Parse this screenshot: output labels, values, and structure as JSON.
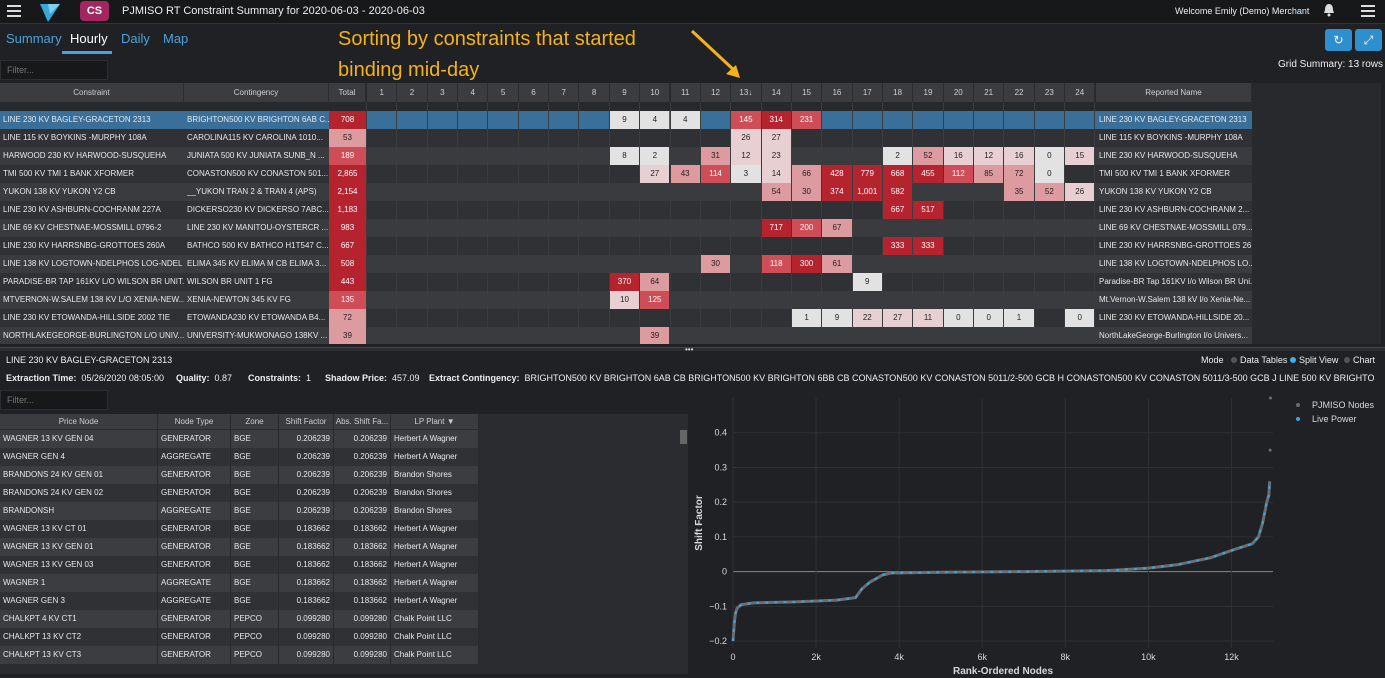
{
  "app": {
    "badge": "CS",
    "title": "PJMISO RT Constraint Summary for 2020-06-03 - 2020-06-03",
    "welcome": "Welcome Emily (Demo) Merchant"
  },
  "tabs": [
    "Summary",
    "Hourly",
    "Daily",
    "Map"
  ],
  "annotation": {
    "line1": "Sorting by constraints that started",
    "line2": "binding mid-day"
  },
  "grid_summary": "Grid Summary: 13 rows",
  "filter_placeholder": "Filter...",
  "grid": {
    "headers": {
      "constraint": "Constraint",
      "contingency": "Contingency",
      "total": "Total",
      "hours": [
        "1",
        "2",
        "3",
        "4",
        "5",
        "6",
        "7",
        "8",
        "9",
        "10",
        "11",
        "12",
        "13↓",
        "14",
        "15",
        "16",
        "17",
        "18",
        "19",
        "20",
        "21",
        "22",
        "23",
        "24"
      ],
      "reported": "Reported Name"
    },
    "rows": [
      {
        "constraint": "LINE 230 KV BAGLEY-GRACETON 2313",
        "contingency": "BRIGHTON500 KV BRIGHTON 6AB C...",
        "total": "708",
        "hours": {
          "9": "9",
          "10": "4",
          "11": "4",
          "13": "145",
          "14": "314",
          "15": "231"
        },
        "reported": "LINE 230 KV BAGLEY-GRACETON 2313"
      },
      {
        "constraint": "LINE 115 KV BOYKINS -MURPHY 108A",
        "contingency": "CAROLINA115 KV CAROLINA 1010...",
        "total": "53",
        "hours": {
          "13": "26",
          "14": "27"
        },
        "reported": "LINE 115 KV BOYKINS -MURPHY 108A"
      },
      {
        "constraint": "HARWOOD 230 KV HARWOOD-SUSQUEHA",
        "contingency": "JUNIATA 500 KV JUNIATA SUNB_N ...",
        "total": "189",
        "hours": {
          "9": "8",
          "10": "2",
          "12": "31",
          "13": "12",
          "14": "23",
          "18": "2",
          "19": "52",
          "20": "16",
          "21": "12",
          "22": "16",
          "23": "0",
          "24": "15"
        },
        "reported": "LINE 230 KV HARWOOD-SUSQUEHA"
      },
      {
        "constraint": "TMI 500 KV TMI 1 BANK XFORMER",
        "contingency": "CONASTON500 KV CONASTON 501...",
        "total": "2,865",
        "hours": {
          "10": "27",
          "11": "43",
          "12": "114",
          "13": "3",
          "14": "14",
          "15": "66",
          "16": "428",
          "17": "779",
          "18": "668",
          "19": "455",
          "20": "112",
          "21": "85",
          "22": "72",
          "23": "0"
        },
        "reported": "TMI 500 KV TMI 1 BANK XFORMER"
      },
      {
        "constraint": "YUKON 138 KV YUKON Y2 CB",
        "contingency": "__YUKON TRAN 2 & TRAN 4 (APS)",
        "total": "2,154",
        "hours": {
          "14": "54",
          "15": "30",
          "16": "374",
          "17": "1,001",
          "18": "582",
          "22": "35",
          "23": "52",
          "24": "26"
        },
        "reported": "YUKON 138 KV YUKON Y2 CB"
      },
      {
        "constraint": "LINE 230 KV ASHBURN-COCHRANM 227A",
        "contingency": "DICKERSO230 KV DICKERSO 7ABC...",
        "total": "1,183",
        "hours": {
          "18": "667",
          "19": "517"
        },
        "reported": "LINE 230 KV ASHBURN-COCHRANM 2..."
      },
      {
        "constraint": "LINE 69 KV CHESTNAE-MOSSMILL 0796-2",
        "contingency": "LINE 230 KV MANITOU-OYSTERCR ...",
        "total": "983",
        "hours": {
          "14": "717",
          "15": "200",
          "16": "67"
        },
        "reported": "LINE 69 KV CHESTNAE-MOSSMILL 079..."
      },
      {
        "constraint": "LINE 230 KV HARRSNBG-GROTTOES 260A",
        "contingency": "BATHCO 500 KV BATHCO H1T547 C...",
        "total": "667",
        "hours": {
          "18": "333",
          "19": "333"
        },
        "reported": "LINE 230 KV HARRSNBG-GROTTOES 26..."
      },
      {
        "constraint": "LINE 138 KV LOGTOWN-NDELPHOS LOG-NDEL",
        "contingency": "ELIMA 345 KV ELIMA M CB ELIMA 3...",
        "total": "508",
        "hours": {
          "12": "30",
          "14": "118",
          "15": "300",
          "16": "61"
        },
        "reported": "LINE 138 KV LOGTOWN-NDELPHOS LO..."
      },
      {
        "constraint": "PARADISE-BR TAP 161KV L/O WILSON BR UNIT...",
        "contingency": "WILSON BR UNIT 1 FG",
        "total": "443",
        "hours": {
          "9": "370",
          "10": "64",
          "17": "9"
        },
        "reported": "Paradise-BR Tap 161KV l/o Wilson BR Uni..."
      },
      {
        "constraint": "MTVERNON-W.SALEM 138 KV L/O XENIA-NEW...",
        "contingency": "XENIA-NEWTON 345 KV FG",
        "total": "135",
        "hours": {
          "9": "10",
          "10": "125"
        },
        "reported": "Mt.Vernon-W.Salem 138 kV l/o Xenia-Ne..."
      },
      {
        "constraint": "LINE 230 KV ETOWANDA-HILLSIDE 2002 TIE",
        "contingency": "ETOWANDA230 KV ETOWANDA B4...",
        "total": "72",
        "hours": {
          "15": "1",
          "16": "9",
          "17": "22",
          "18": "27",
          "19": "11",
          "20": "0",
          "21": "0",
          "22": "1",
          "24": "0"
        },
        "reported": "LINE 230 KV ETOWANDA-HILLSIDE 20..."
      },
      {
        "constraint": "NORTHLAKEGEORGE-BURLINGTON L/O UNIV...",
        "contingency": "UNIVERSITY-MUKWONAGO 138KV ...",
        "total": "39",
        "hours": {
          "10": "39"
        },
        "reported": "NorthLakeGeorge-Burlington l/o Univers..."
      }
    ]
  },
  "detail": {
    "title": "LINE 230 KV BAGLEY-GRACETON 2313",
    "mode_label": "Mode",
    "modes": [
      "Data Tables",
      "Split View",
      "Chart"
    ],
    "active_mode": "Split View",
    "extraction_label": "Extraction Time:",
    "extraction": "05/26/2020 08:05:00",
    "quality_label": "Quality:",
    "quality": "0.87",
    "constraints_label": "Constraints:",
    "constraints": "1",
    "shadow_label": "Shadow Price:",
    "shadow": "457.09",
    "contingency_label": "Extract Contingency:",
    "contingency": "BRIGHTON500 KV BRIGHTON 6AB CB BRIGHTON500 KV BRIGHTON 6BB CB CONASTON500 KV CONASTON 5011/2-500 GCB H CONASTON500 KV CONASTON 5011/3-500 GCB J LINE 500 KV BRIGHTON-CONAST..."
  },
  "nodes": {
    "headers": [
      "Price Node",
      "Node Type",
      "Zone",
      "Shift Factor",
      "Abs. Shift Fa...",
      "LP Plant"
    ],
    "rows": [
      [
        "WAGNER 13 KV GEN 04",
        "GENERATOR",
        "BGE",
        "0.206239",
        "0.206239",
        "Herbert A Wagner"
      ],
      [
        "WAGNER GEN 4",
        "AGGREGATE",
        "BGE",
        "0.206239",
        "0.206239",
        "Herbert A Wagner"
      ],
      [
        "BRANDONS 24 KV GEN 01",
        "GENERATOR",
        "BGE",
        "0.206239",
        "0.206239",
        "Brandon Shores"
      ],
      [
        "BRANDONS 24 KV GEN 02",
        "GENERATOR",
        "BGE",
        "0.206239",
        "0.206239",
        "Brandon Shores"
      ],
      [
        "BRANDONSH",
        "AGGREGATE",
        "BGE",
        "0.206239",
        "0.206239",
        "Brandon Shores"
      ],
      [
        "WAGNER 13 KV CT 01",
        "GENERATOR",
        "BGE",
        "0.183662",
        "0.183662",
        "Herbert A Wagner"
      ],
      [
        "WAGNER 13 KV GEN 01",
        "GENERATOR",
        "BGE",
        "0.183662",
        "0.183662",
        "Herbert A Wagner"
      ],
      [
        "WAGNER 13 KV GEN 03",
        "GENERATOR",
        "BGE",
        "0.183662",
        "0.183662",
        "Herbert A Wagner"
      ],
      [
        "WAGNER 1",
        "AGGREGATE",
        "BGE",
        "0.183662",
        "0.183662",
        "Herbert A Wagner"
      ],
      [
        "WAGNER GEN 3",
        "AGGREGATE",
        "BGE",
        "0.183662",
        "0.183662",
        "Herbert A Wagner"
      ],
      [
        "CHALKPT 4 KV CT1",
        "GENERATOR",
        "PEPCO",
        "0.099280",
        "0.099280",
        "Chalk Point LLC"
      ],
      [
        "CHALKPT 13 KV CT2",
        "GENERATOR",
        "PEPCO",
        "0.099280",
        "0.099280",
        "Chalk Point LLC"
      ],
      [
        "CHALKPT 13 KV CT3",
        "GENERATOR",
        "PEPCO",
        "0.099280",
        "0.099280",
        "Chalk Point LLC"
      ]
    ]
  },
  "chart_data": {
    "type": "scatter",
    "xlabel": "Rank-Ordered Nodes",
    "ylabel": "Shift Factor",
    "xlim": [
      0,
      13000
    ],
    "ylim": [
      -0.22,
      0.5
    ],
    "xticks": [
      {
        "v": 0,
        "t": "0"
      },
      {
        "v": 2000,
        "t": "2k"
      },
      {
        "v": 4000,
        "t": "4k"
      },
      {
        "v": 6000,
        "t": "6k"
      },
      {
        "v": 8000,
        "t": "8k"
      },
      {
        "v": 10000,
        "t": "10k"
      },
      {
        "v": 12000,
        "t": "12k"
      }
    ],
    "yticks": [
      {
        "v": -0.2,
        "t": "−0.2"
      },
      {
        "v": -0.1,
        "t": "−0.1"
      },
      {
        "v": 0,
        "t": "0"
      },
      {
        "v": 0.1,
        "t": "0.1"
      },
      {
        "v": 0.2,
        "t": "0.2"
      },
      {
        "v": 0.3,
        "t": "0.3"
      },
      {
        "v": 0.4,
        "t": "0.4"
      }
    ],
    "legend": [
      {
        "name": "PJMISO Nodes",
        "color": "#6b6d70"
      },
      {
        "name": "Live Power",
        "color": "#3fa3e0"
      }
    ],
    "curve": [
      [
        0,
        -0.2
      ],
      [
        30,
        -0.15
      ],
      [
        60,
        -0.12
      ],
      [
        100,
        -0.105
      ],
      [
        200,
        -0.095
      ],
      [
        500,
        -0.09
      ],
      [
        1500,
        -0.087
      ],
      [
        2500,
        -0.082
      ],
      [
        2950,
        -0.075
      ],
      [
        3100,
        -0.05
      ],
      [
        3300,
        -0.03
      ],
      [
        3600,
        -0.01
      ],
      [
        3800,
        -0.004
      ],
      [
        5000,
        -0.002
      ],
      [
        7000,
        0.0
      ],
      [
        9000,
        0.003
      ],
      [
        10000,
        0.01
      ],
      [
        10700,
        0.02
      ],
      [
        11500,
        0.04
      ],
      [
        12100,
        0.065
      ],
      [
        12500,
        0.08
      ],
      [
        12650,
        0.1
      ],
      [
        12750,
        0.14
      ],
      [
        12850,
        0.2
      ],
      [
        12900,
        0.22
      ],
      [
        12920,
        0.26
      ]
    ],
    "outliers": [
      [
        12930,
        0.35
      ],
      [
        12940,
        0.5
      ]
    ]
  }
}
